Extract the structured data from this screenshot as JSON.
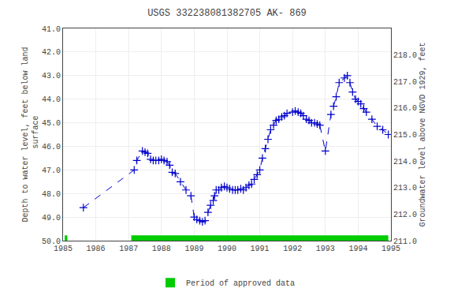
{
  "chart_data": {
    "type": "line",
    "title": "USGS 332238081382705 AK- 869",
    "y_label": "Depth to water level, feet below land\n surface",
    "y2_label": "Groundwater level above NGVD 1929, feet",
    "xlim": [
      1985.0,
      1995.0
    ],
    "xticks": [
      1985,
      1986,
      1987,
      1988,
      1989,
      1990,
      1991,
      1992,
      1993,
      1994,
      1995
    ],
    "ylim": [
      50.0,
      41.0
    ],
    "yticks": [
      {
        "value": 41.0,
        "label": "41.0"
      },
      {
        "value": 42.0,
        "label": "42.0"
      },
      {
        "value": 43.0,
        "label": "43.0"
      },
      {
        "value": 44.0,
        "label": "44.0"
      },
      {
        "value": 45.0,
        "label": "45.0"
      },
      {
        "value": 46.0,
        "label": "46.0"
      },
      {
        "value": 47.0,
        "label": "47.0"
      },
      {
        "value": 48.0,
        "label": "48.0"
      },
      {
        "value": 49.0,
        "label": "49.0"
      },
      {
        "value": 50.0,
        "label": "50.0"
      }
    ],
    "y2lim": [
      211.0,
      219.0
    ],
    "y2ticks": [
      {
        "value": 211.0,
        "label": "211.0"
      },
      {
        "value": 212.0,
        "label": "212.0"
      },
      {
        "value": 213.0,
        "label": "213.0"
      },
      {
        "value": 214.0,
        "label": "214.0"
      },
      {
        "value": 215.0,
        "label": "215.0"
      },
      {
        "value": 216.0,
        "label": "216.0"
      },
      {
        "value": 217.0,
        "label": "217.0"
      },
      {
        "value": 218.0,
        "label": "218.0"
      }
    ],
    "grid": true,
    "x": [
      1985.62,
      1987.17,
      1987.25,
      1987.42,
      1987.5,
      1987.58,
      1987.67,
      1987.75,
      1987.83,
      1987.92,
      1988.0,
      1988.08,
      1988.17,
      1988.25,
      1988.33,
      1988.42,
      1988.58,
      1988.75,
      1988.9,
      1989.0,
      1989.08,
      1989.17,
      1989.25,
      1989.33,
      1989.42,
      1989.5,
      1989.58,
      1989.62,
      1989.67,
      1989.75,
      1989.83,
      1989.92,
      1990.0,
      1990.08,
      1990.17,
      1990.25,
      1990.33,
      1990.42,
      1990.5,
      1990.58,
      1990.67,
      1990.75,
      1990.83,
      1990.92,
      1991.0,
      1991.08,
      1991.17,
      1991.25,
      1991.33,
      1991.42,
      1991.5,
      1991.58,
      1991.67,
      1991.75,
      1991.83,
      1992.0,
      1992.08,
      1992.17,
      1992.25,
      1992.33,
      1992.42,
      1992.5,
      1992.58,
      1992.67,
      1992.75,
      1992.83,
      1993.0,
      1993.17,
      1993.25,
      1993.33,
      1993.42,
      1993.58,
      1993.67,
      1993.75,
      1993.83,
      1993.92,
      1994.0,
      1994.08,
      1994.17,
      1994.25,
      1994.42,
      1994.58,
      1994.75,
      1994.92
    ],
    "series": [
      {
        "color": "#0000CC",
        "line_style": "dashed",
        "marker": "plus",
        "values": [
          48.6,
          47.0,
          46.6,
          46.2,
          46.25,
          46.3,
          46.55,
          46.6,
          46.6,
          46.6,
          46.55,
          46.6,
          46.65,
          46.8,
          47.1,
          47.15,
          47.5,
          47.85,
          48.1,
          49.0,
          49.1,
          49.15,
          49.2,
          49.15,
          48.8,
          48.5,
          48.3,
          48.1,
          47.85,
          47.85,
          47.75,
          47.7,
          47.75,
          47.8,
          47.85,
          47.85,
          47.85,
          47.8,
          47.85,
          47.75,
          47.65,
          47.6,
          47.4,
          47.2,
          47.0,
          46.5,
          46.1,
          45.7,
          45.3,
          45.1,
          44.9,
          44.85,
          44.75,
          44.7,
          44.6,
          44.55,
          44.5,
          44.55,
          44.6,
          44.7,
          44.85,
          44.9,
          45.0,
          45.0,
          45.05,
          45.1,
          46.2,
          44.65,
          44.3,
          43.9,
          43.3,
          43.1,
          43.0,
          43.3,
          43.7,
          44.0,
          44.1,
          44.2,
          44.4,
          44.55,
          44.85,
          45.15,
          45.3,
          45.5
        ]
      }
    ],
    "approved_periods": {
      "name": "Period of approved data",
      "color": "#00CC00",
      "start": [
        1985.05,
        1987.08
      ],
      "width": [
        0.08,
        7.84
      ]
    }
  }
}
